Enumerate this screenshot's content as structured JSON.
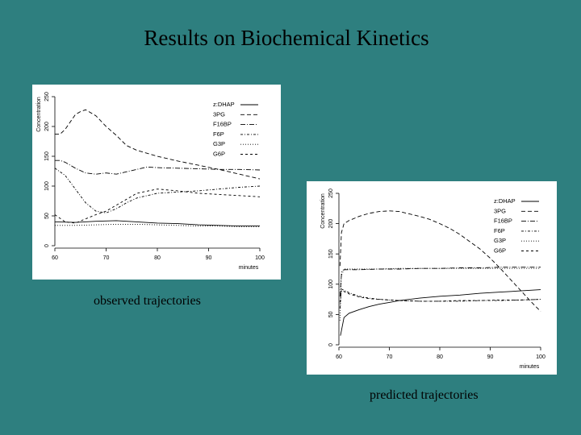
{
  "slide": {
    "title": "Results on Biochemical Kinetics",
    "caption_observed": "observed trajectories",
    "caption_predicted": "predicted trajectories"
  },
  "colors": {
    "background": "#2e7f7f",
    "panel": "#ffffff",
    "ink": "#000000"
  },
  "chart_data": [
    {
      "type": "line",
      "title": "",
      "xlabel": "minutes",
      "ylabel": "Concentration",
      "xlim": [
        60,
        100
      ],
      "ylim": [
        0,
        250
      ],
      "xticks": [
        "60",
        "70",
        "80",
        "90",
        "100"
      ],
      "yticks": [
        "0",
        "50",
        "100",
        "150",
        "200",
        "250"
      ],
      "grid": false,
      "legend_position": "top-right",
      "series": [
        {
          "name": "z:DHAP",
          "dash": "",
          "x": [
            60,
            64,
            68,
            72,
            76,
            80,
            84,
            88,
            92,
            96,
            100
          ],
          "y": [
            40,
            39,
            41,
            42,
            40,
            38,
            37,
            35,
            34,
            33,
            33
          ]
        },
        {
          "name": "3PG",
          "dash": "5 3",
          "x": [
            60,
            61,
            62,
            64,
            65,
            66,
            68,
            70,
            72,
            74,
            76,
            80,
            84,
            88,
            92,
            96,
            100
          ],
          "y": [
            187,
            187,
            195,
            220,
            225,
            228,
            218,
            200,
            185,
            168,
            160,
            150,
            142,
            135,
            128,
            120,
            112
          ]
        },
        {
          "name": "F16BP",
          "dash": "6 2 1 2",
          "x": [
            60,
            61,
            62,
            64,
            66,
            68,
            70,
            72,
            74,
            76,
            78,
            80,
            84,
            88,
            92,
            96,
            100
          ],
          "y": [
            143,
            143,
            140,
            130,
            122,
            120,
            122,
            120,
            124,
            128,
            132,
            131,
            130,
            129,
            128,
            128,
            127
          ]
        },
        {
          "name": "F6P",
          "dash": "3 2 1 2",
          "x": [
            60,
            62,
            64,
            66,
            68,
            70,
            72,
            74,
            76,
            80,
            84,
            88,
            92,
            96,
            100
          ],
          "y": [
            130,
            118,
            95,
            72,
            58,
            55,
            62,
            72,
            80,
            88,
            90,
            92,
            95,
            98,
            100
          ]
        },
        {
          "name": "G3P",
          "dash": "1 2",
          "x": [
            60,
            64,
            68,
            72,
            76,
            80,
            84,
            88,
            92,
            96,
            100
          ],
          "y": [
            34,
            34,
            35,
            36,
            36,
            35,
            34,
            33,
            33,
            32,
            32
          ]
        },
        {
          "name": "G6P",
          "dash": "3 3",
          "x": [
            60,
            61,
            62,
            64,
            66,
            68,
            70,
            72,
            74,
            76,
            80,
            84,
            88,
            92,
            96,
            100
          ],
          "y": [
            52,
            46,
            40,
            38,
            45,
            52,
            58,
            68,
            78,
            88,
            95,
            92,
            88,
            86,
            84,
            82
          ]
        }
      ]
    },
    {
      "type": "line",
      "title": "",
      "xlabel": "minutes",
      "ylabel": "Concentration",
      "xlim": [
        60,
        100
      ],
      "ylim": [
        0,
        250
      ],
      "xticks": [
        "60",
        "70",
        "80",
        "90",
        "100"
      ],
      "yticks": [
        "0",
        "50",
        "100",
        "150",
        "200",
        "250"
      ],
      "grid": false,
      "legend_position": "top-right",
      "series": [
        {
          "name": "z:DHAP",
          "dash": "",
          "x": [
            60.3,
            61,
            62,
            64,
            66,
            68,
            70,
            72,
            74,
            76,
            80,
            84,
            88,
            92,
            96,
            100
          ],
          "y": [
            15,
            45,
            52,
            58,
            63,
            67,
            70,
            73,
            75,
            77,
            80,
            82,
            85,
            87,
            89,
            91
          ]
        },
        {
          "name": "3PG",
          "dash": "5 3",
          "x": [
            60.2,
            60.5,
            61,
            62,
            64,
            66,
            68,
            70,
            72,
            74,
            76,
            78,
            80,
            82,
            84,
            86,
            88,
            90,
            92,
            94,
            96,
            98,
            100
          ],
          "y": [
            130,
            185,
            200,
            205,
            212,
            217,
            220,
            221,
            220,
            216,
            212,
            207,
            200,
            192,
            182,
            170,
            158,
            143,
            126,
            108,
            90,
            72,
            55
          ]
        },
        {
          "name": "F16BP",
          "dash": "6 2 1 2",
          "x": [
            60.2,
            60.5,
            61,
            62,
            64,
            68,
            72,
            76,
            80,
            84,
            88,
            92,
            96,
            100
          ],
          "y": [
            80,
            115,
            124,
            124,
            124,
            125,
            125,
            126,
            126,
            127,
            127,
            128,
            128,
            128
          ]
        },
        {
          "name": "F6P",
          "dash": "3 2 1 2",
          "x": [
            60.2,
            60.5,
            61,
            62,
            64,
            66,
            68,
            70,
            72,
            76,
            80,
            84,
            88,
            92,
            96,
            100
          ],
          "y": [
            60,
            92,
            90,
            86,
            80,
            77,
            75,
            74,
            73,
            72,
            72,
            72,
            73,
            73,
            74,
            75
          ]
        },
        {
          "name": "G3P",
          "dash": "1 2",
          "x": [
            60.2,
            60.5,
            61,
            64,
            68,
            72,
            76,
            80,
            84,
            88,
            92,
            96,
            100
          ],
          "y": [
            40,
            120,
            125,
            125,
            125,
            126,
            126,
            126,
            126,
            126,
            126,
            126,
            126
          ]
        },
        {
          "name": "G6P",
          "dash": "3 3",
          "x": [
            60.2,
            60.5,
            61,
            62,
            64,
            66,
            68,
            70,
            72,
            76,
            80,
            84,
            88,
            92,
            96,
            100
          ],
          "y": [
            70,
            90,
            88,
            84,
            79,
            76,
            75,
            74,
            73,
            72,
            72,
            73,
            73,
            74,
            74,
            75
          ]
        }
      ]
    }
  ]
}
